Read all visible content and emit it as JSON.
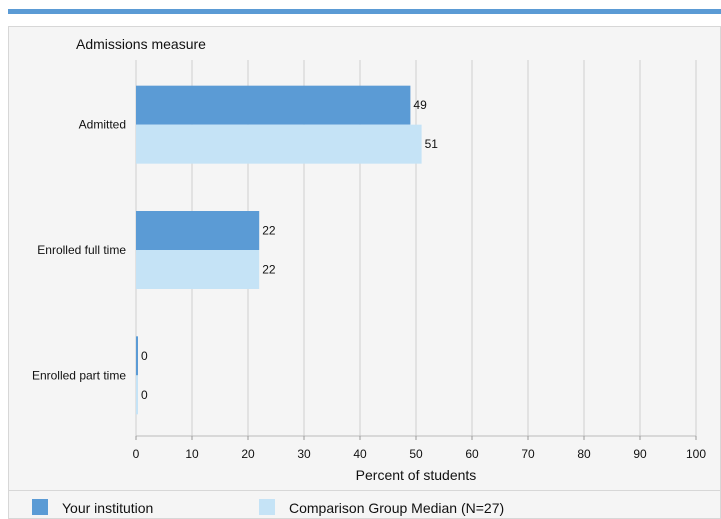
{
  "chart_data": {
    "type": "bar",
    "orientation": "horizontal",
    "ylabel": "Admissions measure",
    "xlabel": "Percent of students",
    "categories": [
      "Admitted",
      "Enrolled full time",
      "Enrolled part time"
    ],
    "series": [
      {
        "name": "Your institution",
        "values": [
          49,
          22,
          0
        ],
        "color": "#5b9bd5"
      },
      {
        "name": "Comparison Group Median (N=27)",
        "values": [
          51,
          22,
          0
        ],
        "color": "#c5e3f6"
      }
    ],
    "xlim": [
      0,
      100
    ],
    "ticks": [
      0,
      10,
      20,
      30,
      40,
      50,
      60,
      70,
      80,
      90,
      100
    ],
    "grid": true,
    "legend": "bottom"
  },
  "colors": {
    "accent": "#5b9bd5",
    "light": "#c5e3f6",
    "grid": "#cfcfcf"
  }
}
